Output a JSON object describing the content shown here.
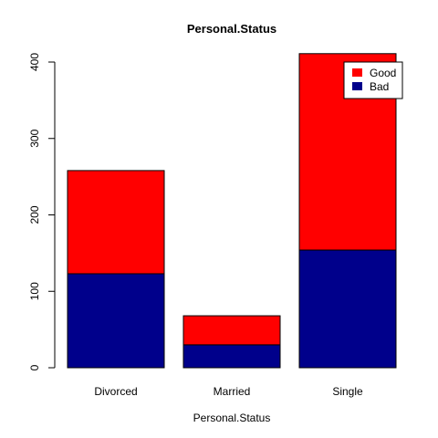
{
  "chart_data": {
    "type": "bar",
    "stacked": true,
    "title": "Personal.Status",
    "xlabel": "Personal.Status",
    "ylabel": "",
    "categories": [
      "Divorced",
      "Married",
      "Single"
    ],
    "series": [
      {
        "name": "Bad",
        "color": "#00008B",
        "values": [
          123,
          30,
          154
        ]
      },
      {
        "name": "Good",
        "color": "#FF0000",
        "values": [
          135,
          38,
          257
        ]
      }
    ],
    "ylim": [
      0,
      410
    ],
    "yticks": [
      "0",
      "100",
      "200",
      "300",
      "400"
    ],
    "legend": {
      "placement": "top-right",
      "entries": [
        "Good",
        "Bad"
      ]
    },
    "grid": false
  }
}
